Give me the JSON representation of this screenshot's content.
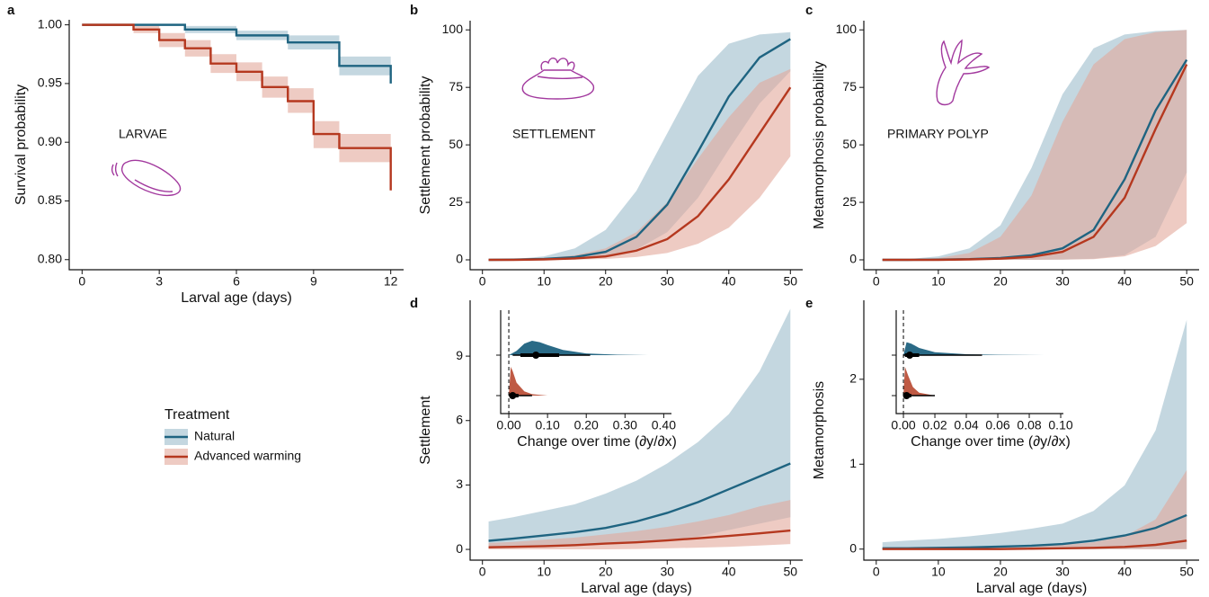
{
  "chart_data": [
    {
      "type": "step",
      "panel_label": "a",
      "annotation": "LARVAE",
      "xlabel": "Larval age (days)",
      "ylabel": "Survival probability",
      "xlim": [
        -0.5,
        12.5
      ],
      "ylim": [
        0.7914,
        1.0043
      ],
      "xticks": [
        0,
        3,
        6,
        9,
        12
      ],
      "yticks": [
        {
          "value": 0.8,
          "label": "0.80"
        },
        {
          "value": 0.85,
          "label": "0.85"
        },
        {
          "value": 0.9,
          "label": "0.90"
        },
        {
          "value": 0.95,
          "label": "0.95"
        },
        {
          "value": 1.0,
          "label": "1.00"
        }
      ],
      "legend_title": "Treatment",
      "series": [
        {
          "name": "Natural",
          "color": "#1f6481",
          "band_color": "#9dbccb",
          "x": [
            0,
            4,
            6,
            8,
            10,
            12
          ],
          "values": [
            1.0,
            0.996,
            0.991,
            0.985,
            0.965,
            0.95
          ],
          "lower": [
            1.0,
            0.993,
            0.987,
            0.979,
            0.957,
            0.95
          ],
          "upper": [
            1.0,
            0.999,
            0.995,
            0.991,
            0.973,
            0.973
          ]
        },
        {
          "name": "Advanced warming",
          "color": "#b5381f",
          "band_color": "#e3a99b",
          "x": [
            0,
            2,
            3,
            4,
            5,
            6,
            7,
            8,
            9,
            10,
            12
          ],
          "values": [
            1.0,
            0.996,
            0.987,
            0.98,
            0.967,
            0.96,
            0.947,
            0.935,
            0.907,
            0.895,
            0.859
          ],
          "lower": [
            1.0,
            0.993,
            0.981,
            0.973,
            0.959,
            0.952,
            0.938,
            0.925,
            0.895,
            0.883,
            0.883
          ],
          "upper": [
            1.0,
            0.999,
            0.993,
            0.987,
            0.975,
            0.968,
            0.956,
            0.946,
            0.918,
            0.907,
            0.907
          ]
        }
      ]
    },
    {
      "type": "line",
      "panel_label": "b",
      "annotation": "SETTLEMENT",
      "ylabel": "Settlement probability",
      "xlim": [
        -2,
        52
      ],
      "ylim": [
        -4.3,
        104
      ],
      "xticks": [
        0,
        10,
        20,
        30,
        40,
        50
      ],
      "yticks": [
        0,
        25,
        50,
        75,
        100
      ],
      "series": [
        {
          "color": "#1f6481",
          "band_color": "#9dbccb",
          "x": [
            1,
            5,
            10,
            15,
            20,
            25,
            30,
            35,
            40,
            45,
            50
          ],
          "values": [
            0,
            0.1,
            0.4,
            1.2,
            3.5,
            10,
            24,
            47,
            71,
            88,
            96
          ],
          "lower": [
            0,
            0,
            0.1,
            0.5,
            1.5,
            4.5,
            12,
            27,
            48,
            68,
            82
          ],
          "upper": [
            0,
            0.3,
            1.5,
            5,
            13,
            30,
            55,
            80,
            94,
            98,
            99
          ]
        },
        {
          "color": "#b5381f",
          "band_color": "#e3a99b",
          "x": [
            1,
            5,
            10,
            15,
            20,
            25,
            30,
            35,
            40,
            45,
            50
          ],
          "values": [
            0,
            0,
            0.2,
            0.6,
            1.5,
            4,
            9,
            19,
            35,
            55,
            75
          ],
          "lower": [
            0,
            0,
            0,
            0.1,
            0.4,
            1.2,
            3,
            7,
            14,
            27,
            45
          ],
          "upper": [
            0,
            0.1,
            0.6,
            2,
            5,
            12,
            25,
            44,
            62,
            77,
            83
          ]
        }
      ]
    },
    {
      "type": "line",
      "panel_label": "c",
      "annotation": "PRIMARY POLYP",
      "ylabel": "Metamorphosis probability",
      "xlim": [
        -2,
        52
      ],
      "ylim": [
        -4.3,
        104
      ],
      "xticks": [
        0,
        10,
        20,
        30,
        40,
        50
      ],
      "yticks": [
        0,
        25,
        50,
        75,
        100
      ],
      "series": [
        {
          "color": "#1f6481",
          "band_color": "#9dbccb",
          "x": [
            1,
            5,
            10,
            15,
            20,
            25,
            30,
            35,
            40,
            45,
            50
          ],
          "values": [
            0,
            0,
            0.1,
            0.3,
            0.8,
            2,
            5,
            13,
            35,
            65,
            87
          ],
          "lower": [
            0,
            0,
            0,
            0,
            0,
            0,
            0.1,
            0.5,
            2,
            10,
            38
          ],
          "upper": [
            0,
            0.3,
            1.5,
            5,
            15,
            40,
            72,
            92,
            98,
            99.5,
            100
          ]
        },
        {
          "color": "#b5381f",
          "band_color": "#e3a99b",
          "x": [
            1,
            5,
            10,
            15,
            20,
            25,
            30,
            35,
            40,
            45,
            50
          ],
          "values": [
            0,
            0,
            0,
            0.2,
            0.5,
            1.3,
            3.5,
            10,
            27,
            57,
            85
          ],
          "lower": [
            0,
            0,
            0,
            0,
            0,
            0,
            0.1,
            0.3,
            1.5,
            6,
            16
          ],
          "upper": [
            0,
            0.1,
            0.8,
            3,
            10,
            28,
            60,
            85,
            96,
            99,
            100
          ]
        }
      ]
    },
    {
      "type": "line",
      "panel_label": "d",
      "xlabel": "Larval age (days)",
      "ylabel": "Settlement",
      "xlim": [
        -2,
        52
      ],
      "ylim": [
        -0.5,
        11.6
      ],
      "xticks": [
        0,
        10,
        20,
        30,
        40,
        50
      ],
      "yticks": [
        0,
        3,
        6,
        9
      ],
      "series": [
        {
          "color": "#1f6481",
          "band_color": "#9dbccb",
          "x": [
            1,
            5,
            10,
            15,
            20,
            25,
            30,
            35,
            40,
            45,
            50
          ],
          "values": [
            0.4,
            0.5,
            0.65,
            0.8,
            1.0,
            1.3,
            1.7,
            2.2,
            2.8,
            3.4,
            4.0
          ],
          "lower": [
            0.1,
            0.12,
            0.15,
            0.2,
            0.25,
            0.3,
            0.4,
            0.6,
            0.9,
            1.2,
            1.5
          ],
          "upper": [
            1.3,
            1.5,
            1.8,
            2.1,
            2.6,
            3.2,
            4.0,
            5.0,
            6.3,
            8.3,
            11.2
          ]
        },
        {
          "color": "#b5381f",
          "band_color": "#e3a99b",
          "x": [
            1,
            5,
            10,
            15,
            20,
            25,
            30,
            35,
            40,
            45,
            50
          ],
          "values": [
            0.1,
            0.12,
            0.15,
            0.2,
            0.27,
            0.33,
            0.42,
            0.52,
            0.63,
            0.75,
            0.88
          ],
          "lower": [
            0,
            0,
            0,
            0,
            0,
            0.02,
            0.05,
            0.08,
            0.12,
            0.18,
            0.25
          ],
          "upper": [
            0.3,
            0.35,
            0.45,
            0.55,
            0.7,
            0.85,
            1.05,
            1.3,
            1.6,
            2.0,
            2.3
          ]
        }
      ],
      "inset": {
        "type": "halfeye",
        "xlabel": "Change over time (∂y/∂x)",
        "xlim": [
          -0.021,
          0.42
        ],
        "ref_line": 0,
        "xticks": [
          {
            "value": 0,
            "label": "0.00"
          },
          {
            "value": 0.1,
            "label": "0.10"
          },
          {
            "value": 0.2,
            "label": "0.20"
          },
          {
            "value": 0.3,
            "label": "0.30"
          },
          {
            "value": 0.4,
            "label": "0.40"
          }
        ],
        "series": [
          {
            "color": "#2a6a86",
            "median": 0.07,
            "interval_66": [
              0.03,
              0.13
            ],
            "interval_95": [
              0.01,
              0.21
            ],
            "density_x": [
              0,
              0.02,
              0.04,
              0.06,
              0.08,
              0.1,
              0.14,
              0.2,
              0.28,
              0.36
            ],
            "density": [
              0,
              0.15,
              0.4,
              0.5,
              0.45,
              0.35,
              0.18,
              0.06,
              0.015,
              0
            ]
          },
          {
            "color": "#bf5a44",
            "median": 0.01,
            "interval_66": [
              0.003,
              0.025
            ],
            "interval_95": [
              0,
              0.06
            ],
            "density_x": [
              0,
              0.005,
              0.01,
              0.02,
              0.04,
              0.06,
              0.1
            ],
            "density": [
              0,
              1,
              0.85,
              0.45,
              0.15,
              0.05,
              0
            ]
          }
        ]
      }
    },
    {
      "type": "line",
      "panel_label": "e",
      "xlabel": "Larval age (days)",
      "ylabel": "Metamorphosis",
      "xlim": [
        -2,
        52
      ],
      "ylim": [
        -0.13,
        2.93
      ],
      "xticks": [
        0,
        10,
        20,
        30,
        40,
        50
      ],
      "yticks": [
        0,
        1,
        2
      ],
      "series": [
        {
          "color": "#1f6481",
          "band_color": "#9dbccb",
          "x": [
            1,
            5,
            10,
            15,
            20,
            25,
            30,
            35,
            40,
            45,
            50
          ],
          "values": [
            0.01,
            0.01,
            0.015,
            0.02,
            0.03,
            0.04,
            0.06,
            0.1,
            0.16,
            0.25,
            0.4
          ],
          "lower": [
            0,
            0,
            0,
            0,
            0,
            0,
            0,
            0,
            0,
            0,
            0
          ],
          "upper": [
            0.08,
            0.1,
            0.12,
            0.15,
            0.19,
            0.24,
            0.3,
            0.45,
            0.75,
            1.4,
            2.7
          ]
        },
        {
          "color": "#b5381f",
          "band_color": "#e3a99b",
          "x": [
            1,
            5,
            10,
            15,
            20,
            25,
            30,
            35,
            40,
            45,
            50
          ],
          "values": [
            0,
            0,
            0,
            0,
            0,
            0.005,
            0.01,
            0.015,
            0.025,
            0.05,
            0.1
          ],
          "lower": [
            0,
            0,
            0,
            0,
            0,
            0,
            0,
            0,
            0,
            0,
            0
          ],
          "upper": [
            0.01,
            0.01,
            0.01,
            0.02,
            0.03,
            0.04,
            0.05,
            0.08,
            0.15,
            0.35,
            0.93
          ]
        }
      ],
      "inset": {
        "type": "halfeye",
        "xlabel": "Change over time (∂y/∂x)",
        "xlim": [
          -0.0046,
          0.1017
        ],
        "ref_line": 0,
        "xticks": [
          {
            "value": 0,
            "label": "0.00"
          },
          {
            "value": 0.02,
            "label": "0.02"
          },
          {
            "value": 0.04,
            "label": "0.04"
          },
          {
            "value": 0.06,
            "label": "0.06"
          },
          {
            "value": 0.08,
            "label": "0.08"
          },
          {
            "value": 0.1,
            "label": "0.10"
          }
        ],
        "series": [
          {
            "color": "#2a6a86",
            "median": 0.004,
            "interval_66": [
              0.001,
              0.01
            ],
            "interval_95": [
              0,
              0.05
            ],
            "density_x": [
              0,
              0.002,
              0.005,
              0.01,
              0.02,
              0.04,
              0.06,
              0.09
            ],
            "density": [
              0,
              0.45,
              0.4,
              0.25,
              0.1,
              0.03,
              0.01,
              0
            ]
          },
          {
            "color": "#bf5a44",
            "median": 0.002,
            "interval_66": [
              0,
              0.005
            ],
            "interval_95": [
              0,
              0.02
            ],
            "density_x": [
              0,
              0.001,
              0.003,
              0.006,
              0.01,
              0.02
            ],
            "density": [
              0,
              1,
              0.7,
              0.3,
              0.1,
              0
            ]
          }
        ]
      }
    }
  ]
}
